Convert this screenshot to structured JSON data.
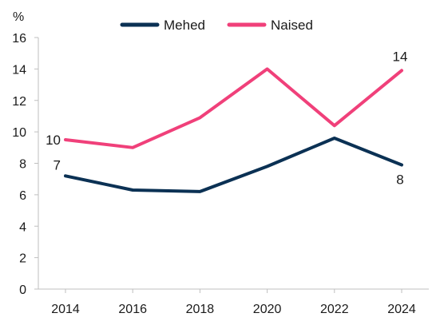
{
  "chart_data": {
    "type": "line",
    "unit_label": "%",
    "x": [
      2014,
      2016,
      2018,
      2020,
      2022,
      2024
    ],
    "ylim": [
      0,
      16
    ],
    "yticks": [
      0,
      2,
      4,
      6,
      8,
      10,
      12,
      14,
      16
    ],
    "grid": false,
    "legend_position": "top",
    "series": [
      {
        "name": "Mehed",
        "color": "#0b3154",
        "values": [
          7.2,
          6.3,
          6.2,
          7.8,
          9.6,
          7.9
        ]
      },
      {
        "name": "Naised",
        "color": "#f0407a",
        "values": [
          9.5,
          9.0,
          10.9,
          14.0,
          10.4,
          13.9
        ]
      }
    ],
    "annotations": [
      {
        "series": 0,
        "index": 0,
        "text": "7"
      },
      {
        "series": 0,
        "index": 5,
        "text": "8"
      },
      {
        "series": 1,
        "index": 0,
        "text": "10"
      },
      {
        "series": 1,
        "index": 5,
        "text": "14"
      }
    ]
  }
}
